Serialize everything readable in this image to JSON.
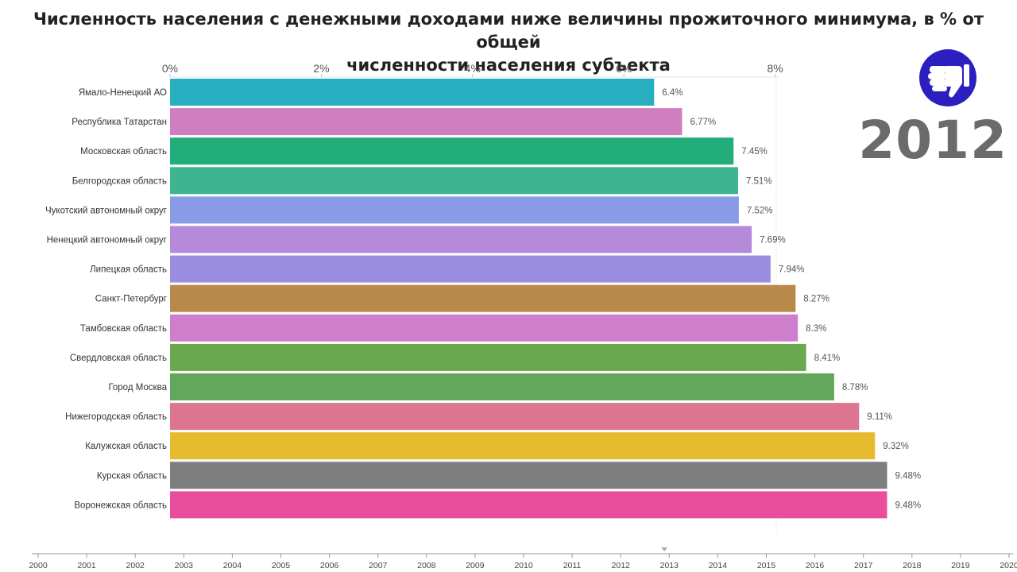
{
  "title_line1": "Численность населения с денежными доходами ниже величины прожиточного минимума, в % от общей",
  "title_line2": "численности населения субъекта",
  "year": "2012",
  "logo": {
    "icon": "thumbs-down-icon",
    "bg_color": "#2b1fbf",
    "fg_color": "#ffffff"
  },
  "chart_data": {
    "type": "bar",
    "orientation": "horizontal",
    "title": "Численность населения с денежными доходами ниже величины прожиточного минимума, в % от общей численности населения субъекта",
    "x_ticks": [
      "0%",
      "2%",
      "4%",
      "6%",
      "8%"
    ],
    "x_tick_values": [
      0,
      2,
      4,
      6,
      8
    ],
    "xlim": [
      0,
      8.2
    ],
    "axis_position": "top",
    "categories": [
      "Ямало-Ненецкий АО",
      "Республика Татарстан",
      "Московская область",
      "Белгородская область",
      "Чукотский автономный округ",
      "Ненецкий автономный округ",
      "Липецкая область",
      "Санкт-Петербург",
      "Тамбовская область",
      "Свердловская область",
      "Город Москва",
      "Нижегородская область",
      "Калужская область",
      "Курская область",
      "Воронежская область"
    ],
    "values": [
      6.4,
      6.77,
      7.45,
      7.51,
      7.52,
      7.69,
      7.94,
      8.27,
      8.3,
      8.41,
      8.78,
      9.11,
      9.32,
      9.48,
      9.48
    ],
    "value_labels": [
      "6.4%",
      "6.77%",
      "7.45%",
      "7.51%",
      "7.52%",
      "7.69%",
      "7.94%",
      "8.27%",
      "8.3%",
      "8.41%",
      "8.78%",
      "9.11%",
      "9.32%",
      "9.48%",
      "9.48%"
    ],
    "colors": [
      "#27aebf",
      "#cf7fc0",
      "#22ad7a",
      "#3db591",
      "#8a9be6",
      "#b58ad8",
      "#9b8ee0",
      "#b9894a",
      "#cd7fcb",
      "#6aa84f",
      "#62a75b",
      "#dd7490",
      "#e6bb2e",
      "#7e7e7e",
      "#e84e9b"
    ],
    "grid": false,
    "legend": "none"
  },
  "timeline": {
    "years": [
      "2000",
      "2001",
      "2002",
      "2003",
      "2004",
      "2005",
      "2006",
      "2007",
      "2008",
      "2009",
      "2010",
      "2011",
      "2012",
      "2013",
      "2014",
      "2015",
      "2016",
      "2017",
      "2018",
      "2019",
      "2020"
    ],
    "current": "2012"
  }
}
